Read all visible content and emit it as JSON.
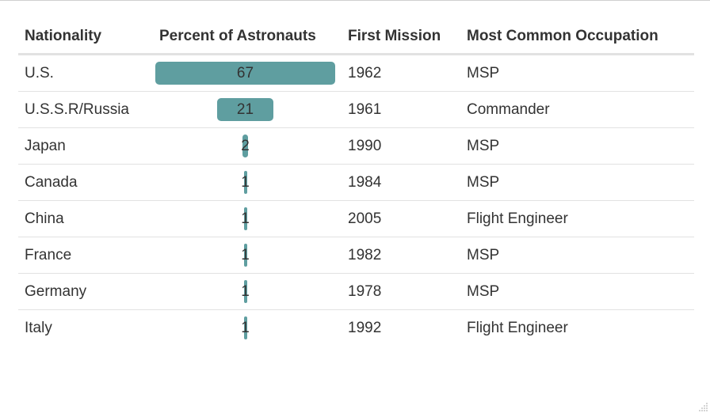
{
  "table": {
    "headers": {
      "nationality": "Nationality",
      "percent": "Percent of Astronauts",
      "first_mission": "First Mission",
      "occupation": "Most Common Occupation"
    },
    "rows": [
      {
        "nationality": "U.S.",
        "percent": "67",
        "percent_value": 67,
        "first_mission": "1962",
        "occupation": "MSP"
      },
      {
        "nationality": "U.S.S.R/Russia",
        "percent": "21",
        "percent_value": 21,
        "first_mission": "1961",
        "occupation": "Commander"
      },
      {
        "nationality": "Japan",
        "percent": "2",
        "percent_value": 2,
        "first_mission": "1990",
        "occupation": "MSP"
      },
      {
        "nationality": "Canada",
        "percent": "1",
        "percent_value": 1,
        "first_mission": "1984",
        "occupation": "MSP"
      },
      {
        "nationality": "China",
        "percent": "1",
        "percent_value": 1,
        "first_mission": "2005",
        "occupation": "Flight Engineer"
      },
      {
        "nationality": "France",
        "percent": "1",
        "percent_value": 1,
        "first_mission": "1982",
        "occupation": "MSP"
      },
      {
        "nationality": "Germany",
        "percent": "1",
        "percent_value": 1,
        "first_mission": "1978",
        "occupation": "MSP"
      },
      {
        "nationality": "Italy",
        "percent": "1",
        "percent_value": 1,
        "first_mission": "1992",
        "occupation": "Flight Engineer"
      }
    ]
  },
  "colors": {
    "bar": "#5f9ea0"
  }
}
